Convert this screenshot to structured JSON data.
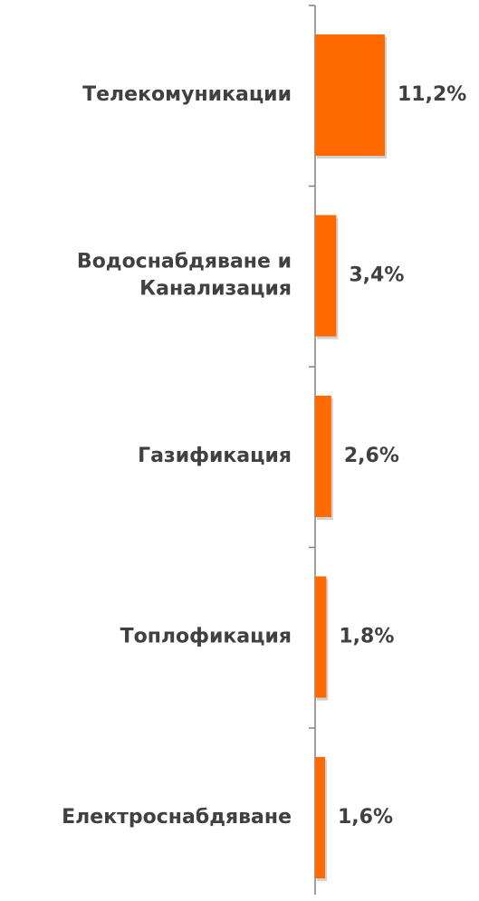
{
  "chart_data": {
    "type": "bar",
    "orientation": "horizontal",
    "categories": [
      [
        "Телекомуникации"
      ],
      [
        "Водоснабдяване и",
        "Канализация"
      ],
      [
        "Газификация"
      ],
      [
        "Топлофикация"
      ],
      [
        "Електроснабдяване"
      ]
    ],
    "values": [
      11.2,
      3.4,
      2.6,
      1.8,
      1.6
    ],
    "data_labels": [
      "11,2%",
      "3,4%",
      "2,6%",
      "1,8%",
      "1,6%"
    ],
    "unit": "%",
    "title": "",
    "xlabel": "",
    "ylabel": "",
    "grid": false,
    "legend": "none",
    "bar_color": "#FF6A00",
    "axis_color": "#808080",
    "text_color": "#404040"
  }
}
